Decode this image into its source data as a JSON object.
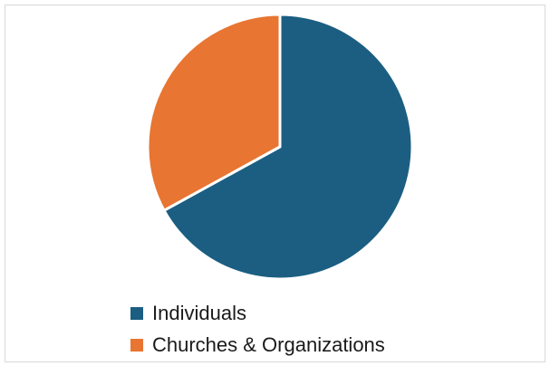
{
  "chart_data": {
    "type": "pie",
    "title": "",
    "slices": [
      {
        "label": "Individuals",
        "value": 67,
        "color": "#1b5e82"
      },
      {
        "label": "Churches & Organizations",
        "value": 33,
        "color": "#e87532"
      }
    ],
    "legend_position": "bottom-center"
  }
}
